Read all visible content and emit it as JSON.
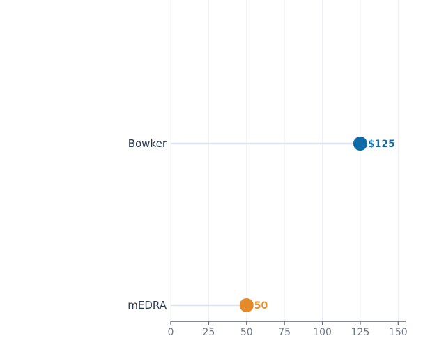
{
  "chart_data": {
    "type": "lollipop",
    "title": "",
    "xlabel": "",
    "ylabel": "",
    "categories": [
      "Bowker",
      "mEDRA"
    ],
    "values": [
      125,
      50
    ],
    "value_labels": [
      "$125",
      "50"
    ],
    "colors": [
      "#0f6aa8",
      "#e58a2b"
    ],
    "xlim": [
      0,
      155
    ],
    "x_ticks": [
      0,
      25,
      50,
      75,
      100,
      125,
      150
    ],
    "x_tick_labels": [
      "0",
      "25",
      "50",
      "75",
      "100",
      "125",
      "150"
    ],
    "grid": true,
    "legend": "none"
  }
}
